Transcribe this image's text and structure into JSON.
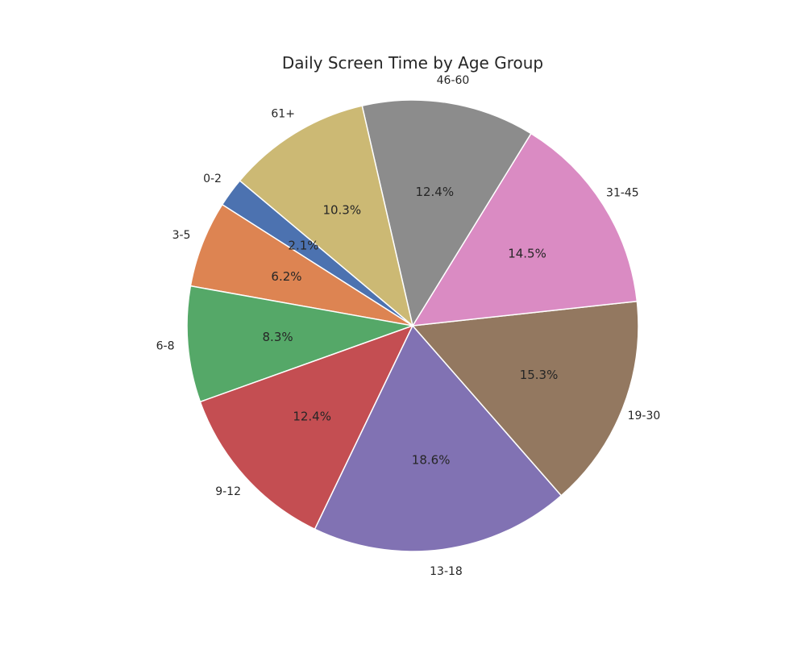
{
  "chart_data": {
    "type": "pie",
    "title": "Daily Screen Time by Age Group",
    "categories": [
      "0-2",
      "3-5",
      "6-8",
      "9-12",
      "13-18",
      "19-30",
      "31-45",
      "46-60",
      "61+"
    ],
    "values": [
      2.1,
      6.2,
      8.3,
      12.4,
      18.6,
      15.3,
      14.5,
      12.4,
      10.3
    ],
    "percent_labels": [
      "2.1%",
      "6.2%",
      "8.3%",
      "12.4%",
      "18.6%",
      "15.3%",
      "14.5%",
      "12.4%",
      "10.3%"
    ],
    "colors": [
      "#4c72b0",
      "#dd8452",
      "#55a868",
      "#c44e52",
      "#8172b3",
      "#937860",
      "#da8bc3",
      "#8c8c8c",
      "#ccb974"
    ],
    "start_angle_deg": 140,
    "direction": "counterclockwise"
  }
}
